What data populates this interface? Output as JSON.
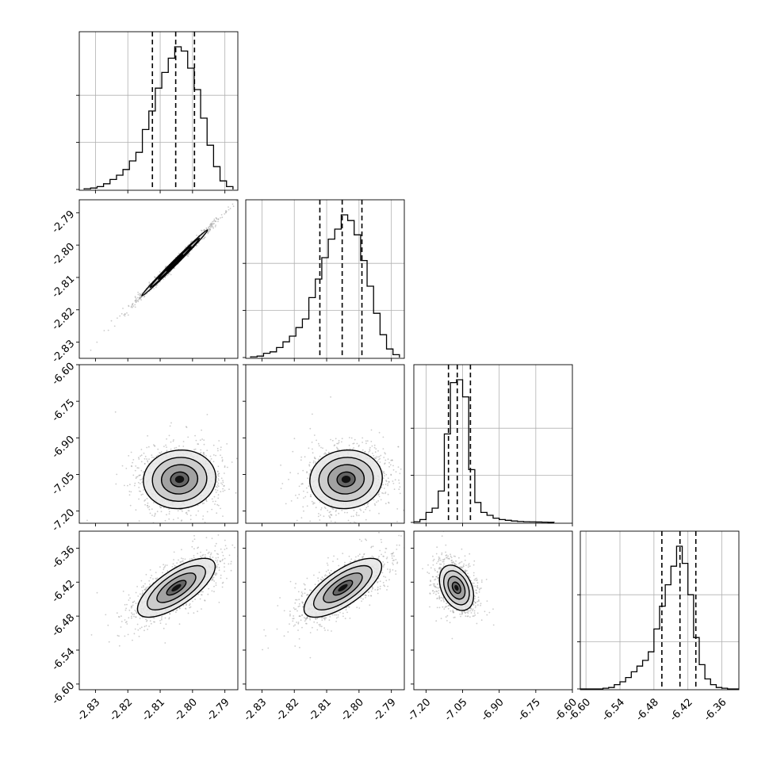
{
  "chart_data": {
    "type": "corner",
    "title": "",
    "parameters": [
      "",
      "",
      "",
      ""
    ],
    "colors": {
      "ink": "#000000",
      "grid": "#b0b0b0",
      "background": "#ffffff"
    },
    "axes": {
      "p0": {
        "range": [
          -2.835,
          -2.786
        ],
        "ticks": [
          "-2.83",
          "-2.82",
          "-2.81",
          "-2.80",
          "-2.79"
        ],
        "tick_values": [
          -2.83,
          -2.82,
          -2.81,
          -2.8,
          -2.79
        ]
      },
      "p1": {
        "range": [
          -2.835,
          -2.786
        ],
        "ticks": [
          "-2.83",
          "-2.82",
          "-2.81",
          "-2.80",
          "-2.79"
        ],
        "tick_values": [
          -2.83,
          -2.82,
          -2.81,
          -2.8,
          -2.79
        ]
      },
      "p2": {
        "range": [
          -7.25,
          -6.6
        ],
        "ticks": [
          "-7.20",
          "-7.05",
          "-6.90",
          "-6.75",
          "-6.60"
        ],
        "tick_values": [
          -7.2,
          -7.05,
          -6.9,
          -6.75,
          -6.6
        ]
      },
      "p3": {
        "range": [
          -6.61,
          -6.33
        ],
        "ticks": [
          "-6.60",
          "-6.54",
          "-6.48",
          "-6.42",
          "-6.36"
        ],
        "tick_values": [
          -6.6,
          -6.54,
          -6.48,
          -6.42,
          -6.36
        ]
      }
    },
    "histograms": [
      {
        "param": "p0",
        "quantiles": [
          -2.8124,
          -2.8052,
          -2.7994
        ],
        "bins": [
          -2.8335,
          -2.8315,
          -2.8295,
          -2.8275,
          -2.8255,
          -2.8235,
          -2.8215,
          -2.8195,
          -2.8175,
          -2.8155,
          -2.8135,
          -2.8115,
          -2.8095,
          -2.8075,
          -2.8055,
          -2.8035,
          -2.8015,
          -2.7995,
          -2.7975,
          -2.7955,
          -2.7935,
          -2.7915,
          -2.7895,
          -2.7875
        ],
        "counts": [
          0.5,
          1,
          2,
          4,
          7,
          10,
          14,
          20,
          26,
          42,
          55,
          71,
          82,
          92,
          100,
          97,
          85,
          70,
          50,
          31,
          16,
          6,
          2
        ]
      },
      {
        "param": "p1",
        "quantiles": [
          -2.8121,
          -2.8052,
          -2.7991
        ],
        "bins": [
          -2.8335,
          -2.8315,
          -2.8295,
          -2.8275,
          -2.8255,
          -2.8235,
          -2.8215,
          -2.8195,
          -2.8175,
          -2.8155,
          -2.8135,
          -2.8115,
          -2.8095,
          -2.8075,
          -2.8055,
          -2.8035,
          -2.8015,
          -2.7995,
          -2.7975,
          -2.7955,
          -2.7935,
          -2.7915,
          -2.7895,
          -2.7875
        ],
        "counts": [
          0.5,
          1,
          3,
          4,
          7,
          11,
          15,
          21,
          27,
          42,
          55,
          70,
          83,
          90,
          100,
          96,
          86,
          68,
          50,
          31,
          16,
          6,
          2
        ]
      },
      {
        "param": "p2",
        "quantiles": [
          -7.108,
          -7.072,
          -7.018
        ],
        "bins": [
          -7.25,
          -7.225,
          -7.2,
          -7.175,
          -7.15,
          -7.125,
          -7.1,
          -7.075,
          -7.05,
          -7.025,
          -7.0,
          -6.975,
          -6.95,
          -6.925,
          -6.9,
          -6.875,
          -6.85,
          -6.825,
          -6.8,
          -6.775,
          -6.75,
          -6.725,
          -6.7,
          -6.675
        ],
        "counts": [
          0.5,
          2,
          7,
          10,
          22,
          62,
          98,
          100,
          88,
          37,
          14,
          7,
          5,
          3,
          2,
          1.5,
          1,
          0.7,
          0.5,
          0.4,
          0.3,
          0.2,
          0.1
        ]
      },
      {
        "param": "p3",
        "quantiles": [
          -6.466,
          -6.434,
          -6.406
        ],
        "bins": [
          -6.61,
          -6.6,
          -6.59,
          -6.58,
          -6.57,
          -6.56,
          -6.55,
          -6.54,
          -6.53,
          -6.52,
          -6.51,
          -6.5,
          -6.49,
          -6.48,
          -6.47,
          -6.46,
          -6.45,
          -6.44,
          -6.43,
          -6.42,
          -6.41,
          -6.4,
          -6.39,
          -6.38,
          -6.37,
          -6.36,
          -6.35,
          -6.34,
          -6.33
        ],
        "counts": [
          0,
          0,
          0,
          0,
          0.5,
          1,
          3,
          5,
          8,
          12,
          16,
          20,
          26,
          42,
          58,
          73,
          86,
          100,
          88,
          66,
          36,
          17,
          7,
          3,
          1,
          0.5,
          0,
          0
        ]
      }
    ],
    "pairs": [
      {
        "x": "p0",
        "y": "p1",
        "center": [
          -2.8055,
          -2.8055
        ],
        "sigma": [
          0.0051,
          0.0051
        ],
        "rho": 0.995
      },
      {
        "x": "p0",
        "y": "p2",
        "center": [
          -2.804,
          -7.07
        ],
        "sigma": [
          0.0056,
          0.06
        ],
        "rho": 0.05
      },
      {
        "x": "p1",
        "y": "p2",
        "center": [
          -2.804,
          -7.07
        ],
        "sigma": [
          0.0056,
          0.06
        ],
        "rho": 0.05
      },
      {
        "x": "p0",
        "y": "p3",
        "center": [
          -2.805,
          -6.43
        ],
        "sigma": [
          0.006,
          0.026
        ],
        "rho": 0.72
      },
      {
        "x": "p1",
        "y": "p3",
        "center": [
          -2.805,
          -6.43
        ],
        "sigma": [
          0.006,
          0.026
        ],
        "rho": 0.72
      },
      {
        "x": "p2",
        "y": "p3",
        "center": [
          -7.075,
          -6.43
        ],
        "sigma": [
          0.035,
          0.02
        ],
        "rho": -0.35
      }
    ],
    "contour_sigmas": [
      0.5,
      1.0,
      1.5,
      2.0
    ]
  }
}
